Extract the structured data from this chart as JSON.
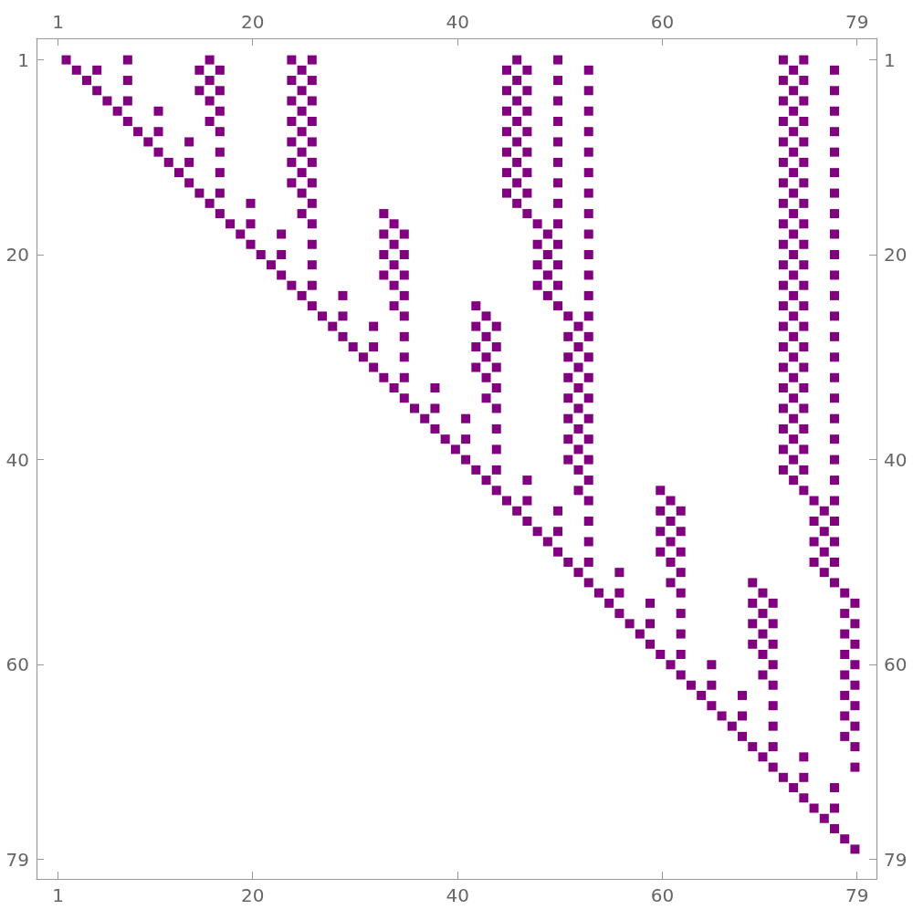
{
  "chart_data": {
    "type": "scatter",
    "marker": "square",
    "grid": false,
    "xlim": [
      -1.1,
      80.9
    ],
    "xticks": [
      1,
      20,
      40,
      60,
      79
    ],
    "x2lim": [
      -1.1,
      80.9
    ],
    "x2ticks": [
      1,
      20,
      40,
      60,
      79
    ],
    "ylim": [
      80.9,
      -1.1
    ],
    "yticks": [
      1,
      20,
      40,
      60,
      79
    ],
    "y2lim": [
      80.9,
      -1.1
    ],
    "y2ticks": [
      1,
      20,
      40,
      60,
      79
    ],
    "series": [
      {
        "color": "#800080",
        "x": [
          1.8,
          2.8,
          3.8,
          4.8,
          5.8,
          6.8,
          7.8,
          8.8,
          9.8,
          10.8,
          11.8,
          12.8,
          13.8,
          14.8,
          15.8,
          16.8,
          17.8,
          18.8,
          19.8,
          20.8,
          21.8,
          22.8,
          23.8,
          24.8,
          25.8,
          26.8,
          27.8,
          28.8,
          29.8,
          30.8,
          31.8,
          32.8,
          33.8,
          34.8,
          35.8,
          36.8,
          37.8,
          38.8,
          39.8,
          40.8,
          41.8,
          42.8,
          43.8,
          44.8,
          45.8,
          46.8,
          47.8,
          48.8,
          49.8,
          50.8,
          51.8,
          52.8,
          53.8,
          54.8,
          55.8,
          56.8,
          57.8,
          58.8,
          59.8,
          60.8,
          61.8,
          62.8,
          63.8,
          64.8,
          65.8,
          66.8,
          67.8,
          68.8,
          69.8,
          70.8,
          71.8,
          72.8,
          73.8,
          74.8,
          75.8,
          76.8,
          77.8,
          78.8
        ],
        "values": [
          1,
          2,
          3,
          4,
          5,
          6,
          7,
          8,
          9,
          10,
          11,
          12,
          13,
          14,
          15,
          16,
          17,
          18,
          19,
          20,
          21,
          22,
          23,
          24,
          25,
          26,
          27,
          28,
          29,
          30,
          31,
          32,
          33,
          34,
          35,
          36,
          37,
          38,
          39,
          40,
          41,
          42,
          43,
          44,
          45,
          46,
          47,
          48,
          49,
          50,
          51,
          52,
          53,
          54,
          55,
          56,
          57,
          58,
          59,
          60,
          61,
          62,
          63,
          64,
          65,
          66,
          67,
          68,
          69,
          70,
          71,
          72,
          73,
          74,
          75,
          76,
          77,
          78
        ]
      },
      {
        "color": "#800080",
        "x": [
          4.8
        ],
        "values": [
          2
        ]
      },
      {
        "color": "#800080",
        "x": [
          7.8,
          7.8,
          7.8
        ],
        "values": [
          1,
          3,
          5
        ]
      },
      {
        "color": "#800080",
        "x": [
          10.8,
          10.8
        ],
        "values": [
          6,
          8
        ]
      },
      {
        "color": "#800080",
        "x": [
          13.8,
          13.8
        ],
        "values": [
          9,
          11
        ]
      },
      {
        "color": "#800080",
        "x": [
          14.8,
          14.8
        ],
        "values": [
          2,
          4
        ]
      },
      {
        "color": "#800080",
        "x": [
          15.8,
          15.8,
          15.8,
          15.8
        ],
        "values": [
          1,
          3,
          5,
          7
        ]
      },
      {
        "color": "#800080",
        "x": [
          16.8,
          16.8,
          16.8,
          16.8,
          16.8,
          16.8,
          16.8
        ],
        "values": [
          2,
          4,
          6,
          8,
          10,
          12,
          14
        ]
      },
      {
        "color": "#800080",
        "x": [
          19.8,
          19.8
        ],
        "values": [
          15,
          17
        ]
      },
      {
        "color": "#800080",
        "x": [
          22.8,
          22.8
        ],
        "values": [
          18,
          20
        ]
      },
      {
        "color": "#800080",
        "x": [
          23.8,
          23.8,
          23.8,
          23.8,
          23.8,
          23.8,
          23.8
        ],
        "values": [
          1,
          3,
          5,
          7,
          9,
          11,
          13
        ]
      },
      {
        "color": "#800080",
        "x": [
          24.8,
          24.8,
          24.8,
          24.8,
          24.8,
          24.8,
          24.8,
          24.8
        ],
        "values": [
          2,
          4,
          6,
          8,
          10,
          12,
          14,
          16
        ]
      },
      {
        "color": "#800080",
        "x": [
          25.8,
          25.8,
          25.8,
          25.8,
          25.8,
          25.8,
          25.8,
          25.8,
          25.8,
          25.8,
          25.8,
          25.8
        ],
        "values": [
          1,
          3,
          5,
          7,
          9,
          11,
          13,
          15,
          17,
          19,
          21,
          23
        ]
      },
      {
        "color": "#800080",
        "x": [
          28.8,
          28.8
        ],
        "values": [
          24,
          26
        ]
      },
      {
        "color": "#800080",
        "x": [
          31.8,
          31.8
        ],
        "values": [
          27,
          29
        ]
      },
      {
        "color": "#800080",
        "x": [
          32.8,
          32.8,
          32.8,
          32.8
        ],
        "values": [
          16,
          18,
          20,
          22
        ]
      },
      {
        "color": "#800080",
        "x": [
          33.8,
          33.8,
          33.8,
          33.8,
          33.8
        ],
        "values": [
          17,
          19,
          21,
          23,
          25
        ]
      },
      {
        "color": "#800080",
        "x": [
          34.8,
          34.8,
          34.8,
          34.8,
          34.8,
          34.8,
          34.8,
          34.8
        ],
        "values": [
          18,
          20,
          22,
          24,
          26,
          28,
          30,
          32
        ]
      },
      {
        "color": "#800080",
        "x": [
          37.8,
          37.8
        ],
        "values": [
          33,
          35
        ]
      },
      {
        "color": "#800080",
        "x": [
          40.8,
          40.8
        ],
        "values": [
          36,
          38
        ]
      },
      {
        "color": "#800080",
        "x": [
          41.8,
          41.8,
          41.8,
          41.8
        ],
        "values": [
          25,
          27,
          29,
          31
        ]
      },
      {
        "color": "#800080",
        "x": [
          42.8,
          42.8,
          42.8,
          42.8,
          42.8
        ],
        "values": [
          26,
          28,
          30,
          32,
          34
        ]
      },
      {
        "color": "#800080",
        "x": [
          43.8,
          43.8,
          43.8,
          43.8,
          43.8,
          43.8,
          43.8,
          43.8
        ],
        "values": [
          27,
          29,
          31,
          33,
          35,
          37,
          39,
          41
        ]
      },
      {
        "color": "#800080",
        "x": [
          44.8,
          44.8,
          44.8,
          44.8,
          44.8,
          44.8,
          44.8
        ],
        "values": [
          2,
          4,
          6,
          8,
          10,
          12,
          14
        ]
      },
      {
        "color": "#800080",
        "x": [
          45.8,
          45.8,
          45.8,
          45.8,
          45.8,
          45.8,
          45.8,
          45.8
        ],
        "values": [
          1,
          3,
          5,
          7,
          9,
          11,
          13,
          15
        ]
      },
      {
        "color": "#800080",
        "x": [
          46.8,
          46.8,
          46.8,
          46.8,
          46.8,
          46.8,
          46.8,
          46.8,
          46.8,
          46.8
        ],
        "values": [
          2,
          4,
          6,
          8,
          10,
          12,
          14,
          16,
          42,
          44
        ]
      },
      {
        "color": "#800080",
        "x": [
          47.8,
          47.8,
          47.8,
          47.8
        ],
        "values": [
          17,
          19,
          21,
          23
        ]
      },
      {
        "color": "#800080",
        "x": [
          48.8,
          48.8,
          48.8,
          48.8
        ],
        "values": [
          18,
          20,
          22,
          24
        ]
      },
      {
        "color": "#800080",
        "x": [
          49.8,
          49.8,
          49.8,
          49.8,
          49.8,
          49.8,
          49.8,
          49.8,
          49.8,
          49.8,
          49.8,
          49.8,
          49.8,
          49.8,
          49.8
        ],
        "values": [
          1,
          3,
          5,
          7,
          9,
          11,
          13,
          15,
          17,
          19,
          21,
          23,
          25,
          45,
          47
        ]
      },
      {
        "color": "#800080",
        "x": [
          50.8,
          50.8,
          50.8,
          50.8,
          50.8,
          50.8,
          50.8,
          50.8
        ],
        "values": [
          26,
          28,
          30,
          32,
          34,
          36,
          38,
          40
        ]
      },
      {
        "color": "#800080",
        "x": [
          51.8,
          51.8,
          51.8,
          51.8,
          51.8,
          51.8,
          51.8,
          51.8,
          51.8
        ],
        "values": [
          27,
          29,
          31,
          33,
          35,
          37,
          39,
          41,
          43
        ]
      },
      {
        "color": "#800080",
        "x": [
          52.8,
          52.8,
          52.8,
          52.8,
          52.8,
          52.8,
          52.8,
          52.8,
          52.8,
          52.8,
          52.8,
          52.8,
          52.8,
          52.8,
          52.8,
          52.8,
          52.8,
          52.8,
          52.8,
          52.8,
          52.8,
          52.8,
          52.8,
          52.8,
          52.8
        ],
        "values": [
          2,
          4,
          6,
          8,
          10,
          12,
          14,
          16,
          18,
          20,
          22,
          24,
          26,
          28,
          30,
          32,
          34,
          36,
          38,
          40,
          42,
          44,
          46,
          48,
          50
        ]
      },
      {
        "color": "#800080",
        "x": [
          55.8,
          55.8
        ],
        "values": [
          51,
          53
        ]
      },
      {
        "color": "#800080",
        "x": [
          58.8,
          58.8
        ],
        "values": [
          54,
          56
        ]
      },
      {
        "color": "#800080",
        "x": [
          59.8,
          59.8,
          59.8,
          59.8
        ],
        "values": [
          43,
          45,
          47,
          49
        ]
      },
      {
        "color": "#800080",
        "x": [
          60.8,
          60.8,
          60.8,
          60.8,
          60.8
        ],
        "values": [
          44,
          46,
          48,
          50,
          52
        ]
      },
      {
        "color": "#800080",
        "x": [
          61.8,
          61.8,
          61.8,
          61.8,
          61.8,
          61.8,
          61.8,
          61.8
        ],
        "values": [
          45,
          47,
          49,
          51,
          53,
          55,
          57,
          59
        ]
      },
      {
        "color": "#800080",
        "x": [
          64.8,
          64.8
        ],
        "values": [
          60,
          62
        ]
      },
      {
        "color": "#800080",
        "x": [
          67.8,
          67.8
        ],
        "values": [
          63,
          65
        ]
      },
      {
        "color": "#800080",
        "x": [
          68.8,
          68.8,
          68.8,
          68.8
        ],
        "values": [
          52,
          54,
          56,
          58
        ]
      },
      {
        "color": "#800080",
        "x": [
          69.8,
          69.8,
          69.8,
          69.8,
          69.8
        ],
        "values": [
          53,
          55,
          57,
          59,
          61
        ]
      },
      {
        "color": "#800080",
        "x": [
          70.8,
          70.8,
          70.8,
          70.8,
          70.8,
          70.8,
          70.8,
          70.8
        ],
        "values": [
          54,
          56,
          58,
          60,
          62,
          64,
          66,
          68
        ]
      },
      {
        "color": "#800080",
        "x": [
          71.8,
          71.8,
          71.8,
          71.8,
          71.8,
          71.8,
          71.8,
          71.8,
          71.8,
          71.8,
          71.8,
          71.8,
          71.8,
          71.8,
          71.8,
          71.8,
          71.8,
          71.8,
          71.8,
          71.8,
          71.8
        ],
        "values": [
          1,
          3,
          5,
          7,
          9,
          11,
          13,
          15,
          17,
          19,
          21,
          23,
          25,
          27,
          29,
          31,
          33,
          35,
          37,
          39,
          41
        ]
      },
      {
        "color": "#800080",
        "x": [
          72.8,
          72.8,
          72.8,
          72.8,
          72.8,
          72.8,
          72.8,
          72.8,
          72.8,
          72.8,
          72.8,
          72.8,
          72.8,
          72.8,
          72.8,
          72.8,
          72.8,
          72.8,
          72.8,
          72.8,
          72.8
        ],
        "values": [
          2,
          4,
          6,
          8,
          10,
          12,
          14,
          16,
          18,
          20,
          22,
          24,
          26,
          28,
          30,
          32,
          34,
          36,
          38,
          40,
          42
        ]
      },
      {
        "color": "#800080",
        "x": [
          73.8,
          73.8,
          73.8,
          73.8,
          73.8,
          73.8,
          73.8,
          73.8,
          73.8,
          73.8,
          73.8,
          73.8,
          73.8,
          73.8,
          73.8,
          73.8,
          73.8,
          73.8,
          73.8,
          73.8,
          73.8,
          73.8,
          73.8,
          73.8
        ],
        "values": [
          1,
          3,
          5,
          7,
          9,
          11,
          13,
          15,
          17,
          19,
          21,
          23,
          25,
          27,
          29,
          31,
          33,
          35,
          37,
          39,
          41,
          43,
          69,
          71
        ]
      },
      {
        "color": "#800080",
        "x": [
          74.8,
          74.8,
          74.8,
          74.8
        ],
        "values": [
          44,
          46,
          48,
          50
        ]
      },
      {
        "color": "#800080",
        "x": [
          75.8,
          75.8,
          75.8,
          75.8
        ],
        "values": [
          45,
          47,
          49,
          51
        ]
      },
      {
        "color": "#800080",
        "x": [
          76.8,
          76.8,
          76.8,
          76.8,
          76.8,
          76.8,
          76.8,
          76.8,
          76.8,
          76.8,
          76.8,
          76.8,
          76.8,
          76.8,
          76.8,
          76.8,
          76.8,
          76.8,
          76.8,
          76.8,
          76.8,
          76.8,
          76.8,
          76.8,
          76.8,
          76.8,
          76.8,
          76.8
        ],
        "values": [
          2,
          4,
          6,
          8,
          10,
          12,
          14,
          16,
          18,
          20,
          22,
          24,
          26,
          28,
          30,
          32,
          34,
          36,
          38,
          40,
          42,
          44,
          46,
          48,
          50,
          52,
          72,
          74
        ]
      },
      {
        "color": "#800080",
        "x": [
          77.8,
          77.8,
          77.8,
          77.8,
          77.8,
          77.8,
          77.8,
          77.8
        ],
        "values": [
          53,
          55,
          57,
          59,
          61,
          63,
          65,
          67
        ]
      },
      {
        "color": "#800080",
        "x": [
          78.8,
          78.8,
          78.8,
          78.8,
          78.8,
          78.8,
          78.8,
          78.8,
          78.8
        ],
        "values": [
          54,
          56,
          58,
          60,
          62,
          64,
          66,
          68,
          70
        ]
      }
    ]
  }
}
